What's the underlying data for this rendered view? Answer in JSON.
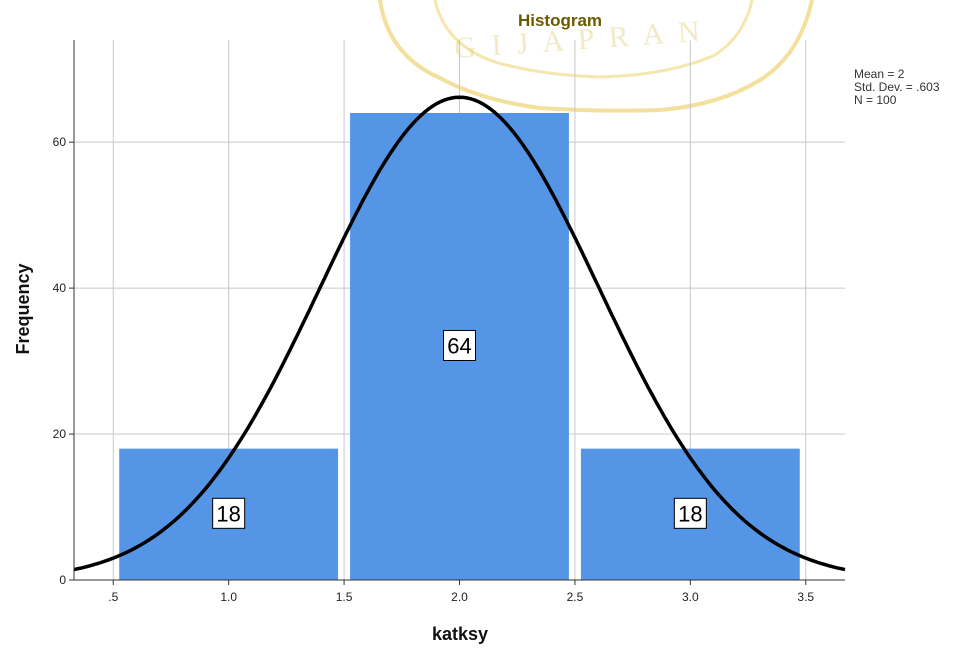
{
  "watermark": {
    "text": "GIJAPRAN",
    "color": "#e8c74a"
  },
  "chart_data": {
    "type": "bar",
    "title": "Histogram",
    "xlabel": "katksy",
    "ylabel": "Frequency",
    "bins": [
      {
        "from": 0.5,
        "to": 1.5,
        "value": 18,
        "label": "18"
      },
      {
        "from": 1.5,
        "to": 2.5,
        "value": 64,
        "label": "64"
      },
      {
        "from": 2.5,
        "to": 3.5,
        "value": 18,
        "label": "18"
      }
    ],
    "xlim": [
      0.33,
      3.67
    ],
    "ylim": [
      0,
      74
    ],
    "xticks": [
      {
        "value": 0.5,
        "label": ".5"
      },
      {
        "value": 1.0,
        "label": "1.0"
      },
      {
        "value": 1.5,
        "label": "1.5"
      },
      {
        "value": 2.0,
        "label": "2.0"
      },
      {
        "value": 2.5,
        "label": "2.5"
      },
      {
        "value": 3.0,
        "label": "3.0"
      },
      {
        "value": 3.5,
        "label": "3.5"
      }
    ],
    "yticks": [
      {
        "value": 0,
        "label": "0"
      },
      {
        "value": 20,
        "label": "20"
      },
      {
        "value": 40,
        "label": "40"
      },
      {
        "value": 60,
        "label": "60"
      }
    ],
    "normal_curve": {
      "mean": 2,
      "sd": 0.603,
      "n": 100,
      "bin_width": 1
    },
    "stats_lines": [
      "Mean = 2",
      "Std. Dev. = .603",
      "N = 100"
    ],
    "grid": true,
    "colors": {
      "bar": "#5495e6",
      "curve": "#000000",
      "grid": "#c8c8c8"
    }
  }
}
